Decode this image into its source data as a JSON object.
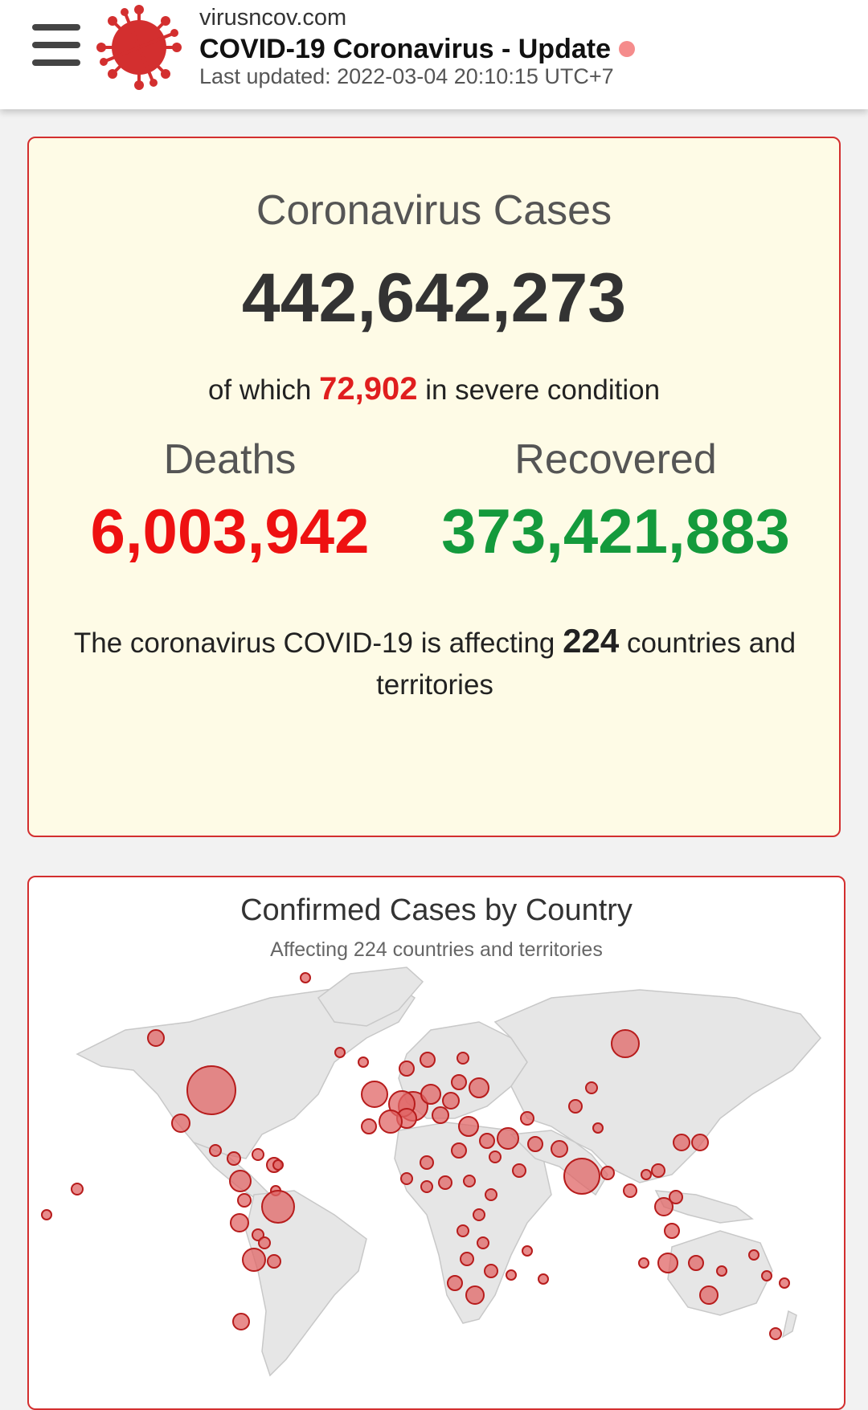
{
  "header": {
    "site": "virusncov.com",
    "title": "COVID-19 Coronavirus - Update",
    "last_updated": "Last updated: 2022-03-04 20:10:15 UTC+7"
  },
  "stats": {
    "cases_label": "Coronavirus Cases",
    "cases_value": "442,642,273",
    "severe_prefix": "of which",
    "severe_value": "72,902",
    "severe_suffix": "in severe condition",
    "deaths_label": "Deaths",
    "deaths_value": "6,003,942",
    "recovered_label": "Recovered",
    "recovered_value": "373,421,883",
    "affecting_prefix": "The coronavirus COVID-19 is affecting",
    "affecting_value": "224",
    "affecting_suffix": "countries and territories"
  },
  "map": {
    "title": "Confirmed Cases by Country",
    "subtitle": "Affecting 224 countries and territories"
  },
  "colors": {
    "accent": "#d32f2f",
    "deaths": "#ee1111",
    "recovered": "#149a3c",
    "card_bg": "#fefbe6",
    "bubble_fill": "#e06565",
    "bubble_stroke": "#b71c1c",
    "land": "#e6e6e6"
  }
}
